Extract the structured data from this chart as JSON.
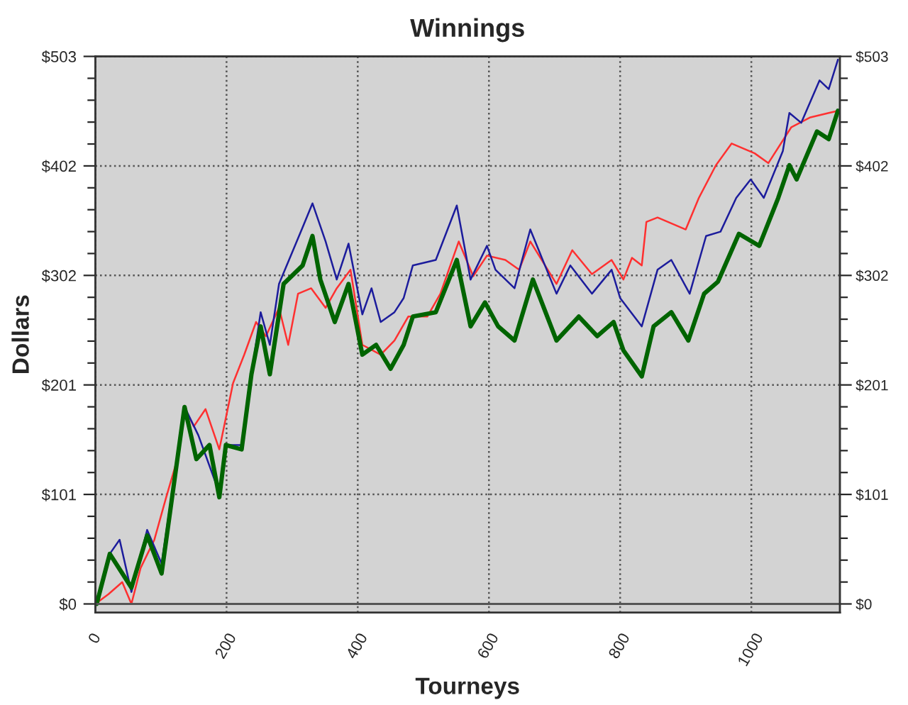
{
  "chart_data": {
    "type": "line",
    "title": "Winnings",
    "xlabel": "Tourneys",
    "ylabel": "Dollars",
    "xlim": [
      0,
      1135
    ],
    "xticks": [
      0,
      200,
      400,
      600,
      800,
      1000
    ],
    "ylim": [
      -8,
      503
    ],
    "yticks": [
      {
        "value": 0,
        "label": "$0"
      },
      {
        "value": 100.6,
        "label": "$101"
      },
      {
        "value": 201.2,
        "label": "$201"
      },
      {
        "value": 301.8,
        "label": "$302"
      },
      {
        "value": 402.4,
        "label": "$402"
      },
      {
        "value": 503,
        "label": "$503"
      }
    ],
    "y2lim": [
      -8,
      503
    ],
    "y2ticks": [
      {
        "value": 0,
        "label": "$0"
      },
      {
        "value": 100.6,
        "label": "$101"
      },
      {
        "value": 201.2,
        "label": "$201"
      },
      {
        "value": 301.8,
        "label": "$302"
      },
      {
        "value": 402.4,
        "label": "$402"
      },
      {
        "value": 503,
        "label": "$503"
      }
    ],
    "grid": true,
    "legend": false,
    "marker": "none",
    "line_style": "solid",
    "series": [
      {
        "color": "#ff3030",
        "x": [
          0,
          20,
          41,
          55,
          69,
          90,
          108,
          125,
          136,
          150,
          168,
          189,
          210,
          227,
          245,
          260,
          280,
          294,
          309,
          329,
          351,
          368,
          389,
          407,
          435,
          456,
          477,
          506,
          526,
          554,
          576,
          597,
          625,
          646,
          663,
          703,
          727,
          757,
          787,
          805,
          818,
          833,
          840,
          857,
          900,
          920,
          946,
          970,
          1005,
          1026,
          1061,
          1090,
          1118,
          1132
        ],
        "values": [
          0,
          9,
          20,
          0,
          33,
          59,
          98,
          133,
          181,
          163,
          179,
          142,
          203,
          229,
          259,
          246,
          272,
          238,
          285,
          290,
          272,
          290,
          307,
          238,
          229,
          242,
          264,
          264,
          285,
          333,
          301,
          320,
          316,
          307,
          333,
          294,
          325,
          303,
          316,
          298,
          318,
          311,
          351,
          355,
          344,
          373,
          403,
          423,
          414,
          405,
          438,
          447,
          451,
          453
        ]
      },
      {
        "color": "#1c1c9c",
        "x": [
          2,
          22,
          37,
          55,
          79,
          101,
          136,
          157,
          189,
          199,
          223,
          238,
          252,
          266,
          280,
          316,
          331,
          351,
          368,
          386,
          407,
          421,
          435,
          456,
          470,
          484,
          519,
          551,
          572,
          597,
          610,
          639,
          663,
          703,
          724,
          757,
          787,
          800,
          833,
          857,
          878,
          906,
          931,
          953,
          977,
          999,
          1019,
          1048,
          1058,
          1076,
          1104,
          1118,
          1132
        ],
        "values": [
          0,
          46,
          59,
          11,
          68,
          37,
          181,
          155,
          102,
          146,
          146,
          211,
          268,
          238,
          294,
          346,
          368,
          333,
          298,
          331,
          266,
          290,
          259,
          268,
          281,
          311,
          316,
          366,
          298,
          329,
          307,
          290,
          344,
          285,
          311,
          285,
          307,
          281,
          255,
          307,
          316,
          285,
          338,
          342,
          373,
          390,
          373,
          416,
          451,
          442,
          481,
          473,
          500
        ]
      },
      {
        "color": "#006400",
        "x": [
          2,
          22,
          55,
          79,
          101,
          136,
          154,
          174,
          189,
          199,
          223,
          238,
          252,
          266,
          287,
          316,
          331,
          343,
          365,
          386,
          407,
          428,
          450,
          470,
          484,
          519,
          551,
          572,
          594,
          614,
          639,
          667,
          703,
          737,
          765,
          790,
          805,
          833,
          851,
          878,
          904,
          928,
          949,
          981,
          1012,
          1041,
          1058,
          1069,
          1100,
          1118,
          1132
        ],
        "values": [
          0,
          46,
          15,
          63,
          28,
          181,
          133,
          146,
          98,
          146,
          142,
          211,
          255,
          211,
          294,
          311,
          338,
          298,
          259,
          294,
          229,
          238,
          216,
          238,
          264,
          268,
          316,
          255,
          277,
          255,
          242,
          298,
          242,
          264,
          246,
          259,
          233,
          209,
          255,
          268,
          242,
          285,
          296,
          340,
          329,
          373,
          403,
          390,
          434,
          427,
          453
        ]
      }
    ]
  }
}
